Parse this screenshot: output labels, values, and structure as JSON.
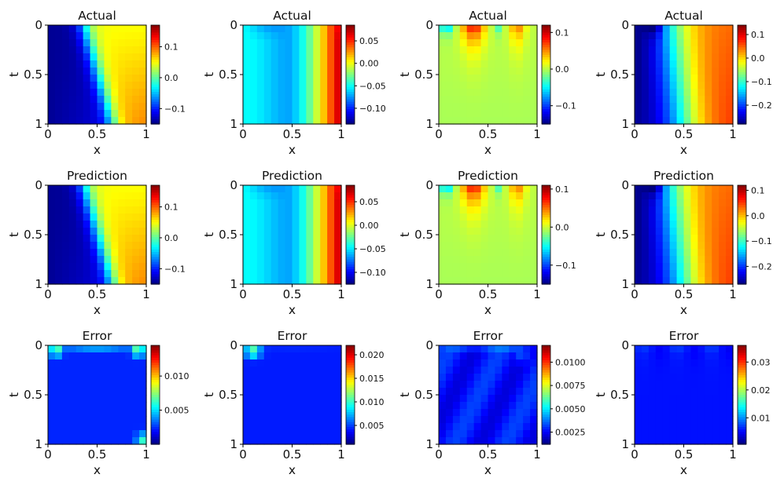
{
  "chart_data": [
    {
      "type": "heatmap",
      "title": "Actual",
      "xlabel": "x",
      "ylabel": "t",
      "xticks": [
        "0",
        "0.5",
        "1"
      ],
      "yticks": [
        "0",
        "0.5",
        "1"
      ],
      "colormap": "jet",
      "pattern": "actual-a",
      "colorbar": {
        "vmin": -0.15,
        "vmax": 0.17,
        "ticks": [
          {
            "v": 0.1,
            "label": "0.1"
          },
          {
            "v": 0.0,
            "label": "0.0"
          },
          {
            "v": -0.1,
            "label": "−0.1"
          }
        ]
      }
    },
    {
      "type": "heatmap",
      "title": "Actual",
      "xlabel": "x",
      "ylabel": "t",
      "xticks": [
        "0",
        "0.5",
        "1"
      ],
      "yticks": [
        "0",
        "0.5",
        "1"
      ],
      "colormap": "jet",
      "pattern": "actual-b",
      "colorbar": {
        "vmin": -0.135,
        "vmax": 0.085,
        "ticks": [
          {
            "v": 0.05,
            "label": "0.05"
          },
          {
            "v": 0.0,
            "label": "0.00"
          },
          {
            "v": -0.05,
            "label": "−0.05"
          },
          {
            "v": -0.1,
            "label": "−0.10"
          }
        ]
      }
    },
    {
      "type": "heatmap",
      "title": "Actual",
      "xlabel": "x",
      "ylabel": "t",
      "xticks": [
        "0",
        "0.5",
        "1"
      ],
      "yticks": [
        "0",
        "0.5",
        "1"
      ],
      "colormap": "jet",
      "pattern": "actual-c",
      "colorbar": {
        "vmin": -0.15,
        "vmax": 0.12,
        "ticks": [
          {
            "v": 0.1,
            "label": "0.1"
          },
          {
            "v": 0.0,
            "label": "0.0"
          },
          {
            "v": -0.1,
            "label": "−0.1"
          }
        ]
      }
    },
    {
      "type": "heatmap",
      "title": "Actual",
      "xlabel": "x",
      "ylabel": "t",
      "xticks": [
        "0",
        "0.5",
        "1"
      ],
      "yticks": [
        "0",
        "0.5",
        "1"
      ],
      "colormap": "jet",
      "pattern": "actual-d",
      "colorbar": {
        "vmin": -0.28,
        "vmax": 0.14,
        "ticks": [
          {
            "v": 0.1,
            "label": "0.1"
          },
          {
            "v": 0.0,
            "label": "0.0"
          },
          {
            "v": -0.1,
            "label": "−0.1"
          },
          {
            "v": -0.2,
            "label": "−0.2"
          }
        ]
      }
    },
    {
      "type": "heatmap",
      "title": "Prediction",
      "xlabel": "x",
      "ylabel": "t",
      "xticks": [
        "0",
        "0.5",
        "1"
      ],
      "yticks": [
        "0",
        "0.5",
        "1"
      ],
      "colormap": "jet",
      "pattern": "actual-a",
      "colorbar": {
        "vmin": -0.15,
        "vmax": 0.17,
        "ticks": [
          {
            "v": 0.1,
            "label": "0.1"
          },
          {
            "v": 0.0,
            "label": "0.0"
          },
          {
            "v": -0.1,
            "label": "−0.1"
          }
        ]
      }
    },
    {
      "type": "heatmap",
      "title": "Prediction",
      "xlabel": "x",
      "ylabel": "t",
      "xticks": [
        "0",
        "0.5",
        "1"
      ],
      "yticks": [
        "0",
        "0.5",
        "1"
      ],
      "colormap": "jet",
      "pattern": "actual-b",
      "colorbar": {
        "vmin": -0.125,
        "vmax": 0.085,
        "ticks": [
          {
            "v": 0.05,
            "label": "0.05"
          },
          {
            "v": 0.0,
            "label": "0.00"
          },
          {
            "v": -0.05,
            "label": "−0.05"
          },
          {
            "v": -0.1,
            "label": "−0.10"
          }
        ]
      }
    },
    {
      "type": "heatmap",
      "title": "Prediction",
      "xlabel": "x",
      "ylabel": "t",
      "xticks": [
        "0",
        "0.5",
        "1"
      ],
      "yticks": [
        "0",
        "0.5",
        "1"
      ],
      "colormap": "jet",
      "pattern": "actual-c",
      "colorbar": {
        "vmin": -0.15,
        "vmax": 0.11,
        "ticks": [
          {
            "v": 0.1,
            "label": "0.1"
          },
          {
            "v": 0.0,
            "label": "0.0"
          },
          {
            "v": -0.1,
            "label": "−0.1"
          }
        ]
      }
    },
    {
      "type": "heatmap",
      "title": "Prediction",
      "xlabel": "x",
      "ylabel": "t",
      "xticks": [
        "0",
        "0.5",
        "1"
      ],
      "yticks": [
        "0",
        "0.5",
        "1"
      ],
      "colormap": "jet",
      "pattern": "actual-d",
      "colorbar": {
        "vmin": -0.27,
        "vmax": 0.12,
        "ticks": [
          {
            "v": 0.1,
            "label": "0.1"
          },
          {
            "v": 0.0,
            "label": "0.0"
          },
          {
            "v": -0.1,
            "label": "−0.1"
          },
          {
            "v": -0.2,
            "label": "−0.2"
          }
        ]
      }
    },
    {
      "type": "heatmap",
      "title": "Error",
      "xlabel": "x",
      "ylabel": "t",
      "xticks": [
        "0",
        "0.5",
        "1"
      ],
      "yticks": [
        "0",
        "0.5",
        "1"
      ],
      "colormap": "jet",
      "pattern": "error-a",
      "colorbar": {
        "vmin": 0.0,
        "vmax": 0.0145,
        "ticks": [
          {
            "v": 0.01,
            "label": "0.010"
          },
          {
            "v": 0.005,
            "label": "0.005"
          }
        ]
      }
    },
    {
      "type": "heatmap",
      "title": "Error",
      "xlabel": "x",
      "ylabel": "t",
      "xticks": [
        "0",
        "0.5",
        "1"
      ],
      "yticks": [
        "0",
        "0.5",
        "1"
      ],
      "colormap": "jet",
      "pattern": "error-b",
      "colorbar": {
        "vmin": 0.001,
        "vmax": 0.022,
        "ticks": [
          {
            "v": 0.02,
            "label": "0.020"
          },
          {
            "v": 0.015,
            "label": "0.015"
          },
          {
            "v": 0.01,
            "label": "0.010"
          },
          {
            "v": 0.005,
            "label": "0.005"
          }
        ]
      }
    },
    {
      "type": "heatmap",
      "title": "Error",
      "xlabel": "x",
      "ylabel": "t",
      "xticks": [
        "0",
        "0.5",
        "1"
      ],
      "yticks": [
        "0",
        "0.5",
        "1"
      ],
      "colormap": "jet",
      "pattern": "error-c",
      "colorbar": {
        "vmin": 0.0012,
        "vmax": 0.0118,
        "ticks": [
          {
            "v": 0.01,
            "label": "0.0100"
          },
          {
            "v": 0.0075,
            "label": "0.0075"
          },
          {
            "v": 0.005,
            "label": "0.0050"
          },
          {
            "v": 0.0025,
            "label": "0.0025"
          }
        ]
      }
    },
    {
      "type": "heatmap",
      "title": "Error",
      "xlabel": "x",
      "ylabel": "t",
      "xticks": [
        "0",
        "0.5",
        "1"
      ],
      "yticks": [
        "0",
        "0.5",
        "1"
      ],
      "colormap": "jet",
      "pattern": "error-d",
      "colorbar": {
        "vmin": 0.0005,
        "vmax": 0.036,
        "ticks": [
          {
            "v": 0.03,
            "label": "0.03"
          },
          {
            "v": 0.02,
            "label": "0.02"
          },
          {
            "v": 0.01,
            "label": "0.01"
          }
        ]
      }
    }
  ]
}
